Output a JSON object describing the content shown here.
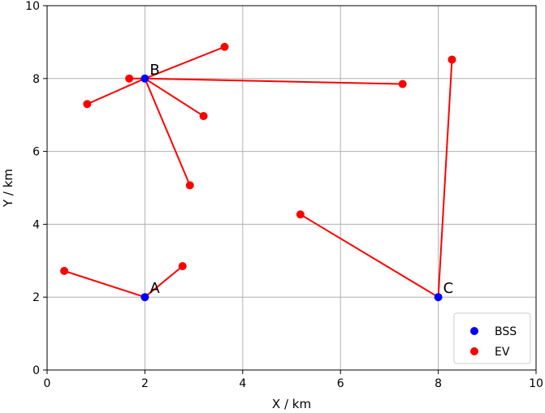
{
  "chart_data": {
    "type": "scatter",
    "xlabel": "X / km",
    "ylabel": "Y / km",
    "xlim": [
      0,
      10
    ],
    "ylim": [
      0,
      10
    ],
    "xticks": [
      "0",
      "2",
      "4",
      "6",
      "8",
      "10"
    ],
    "yticks": [
      "0",
      "2",
      "4",
      "6",
      "8",
      "10"
    ],
    "grid": true,
    "legend_position": "lower-right",
    "series": [
      {
        "name": "BSS",
        "color": "#0000ff",
        "points": [
          {
            "label": "A",
            "x": 2.0,
            "y": 2.0
          },
          {
            "label": "B",
            "x": 2.0,
            "y": 8.0
          },
          {
            "label": "C",
            "x": 8.0,
            "y": 2.0
          }
        ]
      },
      {
        "name": "EV",
        "color": "#ff0000",
        "points": [
          {
            "x": 0.35,
            "y": 2.72,
            "station": "A"
          },
          {
            "x": 2.77,
            "y": 2.85,
            "station": "A"
          },
          {
            "x": 3.63,
            "y": 8.87,
            "station": "B"
          },
          {
            "x": 1.68,
            "y": 8.0,
            "station": "B"
          },
          {
            "x": 0.82,
            "y": 7.3,
            "station": "B"
          },
          {
            "x": 3.2,
            "y": 6.97,
            "station": "B"
          },
          {
            "x": 2.92,
            "y": 5.07,
            "station": "B"
          },
          {
            "x": 7.27,
            "y": 7.85,
            "station": "B"
          },
          {
            "x": 8.28,
            "y": 8.52,
            "station": "C"
          },
          {
            "x": 5.18,
            "y": 4.27,
            "station": "C"
          }
        ]
      }
    ],
    "link_color": "#ff0000"
  }
}
